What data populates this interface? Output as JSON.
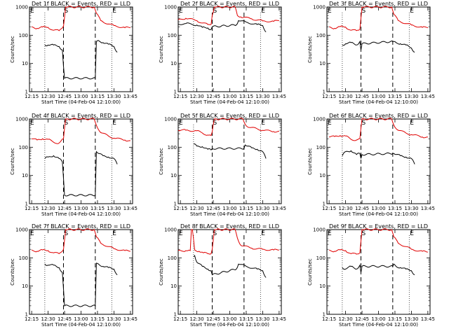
{
  "figure": {
    "background": "#ffffff",
    "events_color": "#000000",
    "lld_color": "#e00000"
  },
  "chart_data": [
    {
      "type": "line",
      "title": "Det 1f BLACK = Events, RED = LLD",
      "xlabel": "Start Time (04-Feb-04 12:10:00)",
      "ylabel": "Counts/sec",
      "y_scale": "log",
      "ylim": [
        1,
        1000
      ],
      "yticks": [
        "1",
        "10",
        "100",
        "1000"
      ],
      "xlim": [
        "12:13",
        "13:47"
      ],
      "xticks": [
        "12:15",
        "12:30",
        "12:45",
        "13:00",
        "13:15",
        "13:30",
        "13:45"
      ],
      "event_marks": [
        "E",
        "S",
        "E"
      ],
      "grid": false,
      "series": [
        {
          "name": "LLD",
          "color": "#e00000",
          "x": [
            "12:15",
            "12:20",
            "12:25",
            "12:30",
            "12:35",
            "12:40",
            "12:44",
            "12:46",
            "12:48",
            "13:12",
            "13:14",
            "13:18",
            "13:25",
            "13:30",
            "13:40",
            "13:45"
          ],
          "y": [
            200,
            175,
            195,
            190,
            150,
            145,
            210,
            1000,
            1000,
            1000,
            600,
            330,
            250,
            220,
            185,
            185
          ]
        },
        {
          "name": "Events",
          "color": "#000000",
          "x": [
            "12:27",
            "12:30",
            "12:35",
            "12:40",
            "12:43",
            "12:44",
            "12:45",
            "13:13",
            "13:14",
            "13:16",
            "13:20",
            "13:25",
            "13:30",
            "13:33"
          ],
          "y": [
            45,
            45,
            45,
            40,
            30,
            8,
            3,
            3,
            60,
            65,
            55,
            48,
            40,
            25
          ]
        }
      ]
    },
    {
      "type": "line",
      "title": "Det 2f BLACK = Events, RED = LLD",
      "xlabel": "Start Time (04-Feb-04 12:10:00)",
      "ylabel": "Counts/sec",
      "y_scale": "log",
      "ylim": [
        1,
        1000
      ],
      "yticks": [
        "1",
        "10",
        "100",
        "1000"
      ],
      "xlim": [
        "12:13",
        "13:47"
      ],
      "xticks": [
        "12:15",
        "12:30",
        "12:45",
        "13:00",
        "13:15",
        "13:30",
        "13:45"
      ],
      "event_marks": [
        "E",
        "S",
        "E"
      ],
      "grid": false,
      "series": [
        {
          "name": "LLD",
          "color": "#e00000",
          "x": [
            "12:13",
            "12:20",
            "12:30",
            "12:35",
            "12:40",
            "12:43",
            "12:44",
            "12:46",
            "12:48",
            "13:05",
            "13:07",
            "13:10",
            "13:20",
            "13:30",
            "13:40",
            "13:45"
          ],
          "y": [
            350,
            400,
            330,
            270,
            240,
            240,
            500,
            1000,
            1000,
            1000,
            500,
            450,
            380,
            320,
            310,
            330
          ]
        },
        {
          "name": "Events",
          "color": "#000000",
          "x": [
            "12:13",
            "12:20",
            "12:30",
            "12:35",
            "12:40",
            "12:43",
            "12:44",
            "13:06",
            "13:08",
            "13:15",
            "13:25",
            "13:30",
            "13:33"
          ],
          "y": [
            250,
            260,
            230,
            190,
            180,
            160,
            200,
            230,
            330,
            290,
            240,
            220,
            130
          ]
        }
      ]
    },
    {
      "type": "line",
      "title": "Det 3f BLACK = Events, RED = LLD",
      "xlabel": "Start Time (04-Feb-04 12:10:00)",
      "ylabel": "Counts/sec",
      "y_scale": "log",
      "ylim": [
        1,
        1000
      ],
      "yticks": [
        "1",
        "10",
        "100",
        "1000"
      ],
      "xlim": [
        "12:13",
        "13:47"
      ],
      "xticks": [
        "12:15",
        "12:30",
        "12:45",
        "13:00",
        "13:15",
        "13:30",
        "13:45"
      ],
      "event_marks": [
        "E",
        "S",
        "E"
      ],
      "grid": false,
      "series": [
        {
          "name": "LLD",
          "color": "#e00000",
          "x": [
            "12:15",
            "12:20",
            "12:25",
            "12:30",
            "12:35",
            "12:40",
            "12:43",
            "12:45",
            "12:47",
            "13:12",
            "13:14",
            "13:18",
            "13:25",
            "13:30",
            "13:40",
            "13:45"
          ],
          "y": [
            200,
            175,
            200,
            195,
            150,
            145,
            160,
            1000,
            1000,
            1000,
            550,
            330,
            260,
            230,
            190,
            185
          ]
        },
        {
          "name": "Events",
          "color": "#000000",
          "x": [
            "12:27",
            "12:30",
            "12:35",
            "12:40",
            "12:43",
            "12:44",
            "12:45",
            "13:13",
            "13:14",
            "13:16",
            "13:20",
            "13:25",
            "13:30",
            "13:33"
          ],
          "y": [
            45,
            50,
            55,
            45,
            60,
            30,
            50,
            60,
            60,
            55,
            50,
            45,
            35,
            25
          ]
        }
      ]
    },
    {
      "type": "line",
      "title": "Det 4f BLACK = Events, RED = LLD",
      "xlabel": "Start Time (04-Feb-04 12:10:00)",
      "ylabel": "Counts/sec",
      "y_scale": "log",
      "ylim": [
        1,
        1000
      ],
      "yticks": [
        "1",
        "10",
        "100",
        "1000"
      ],
      "xlim": [
        "12:13",
        "13:47"
      ],
      "xticks": [
        "12:15",
        "12:30",
        "12:45",
        "13:00",
        "13:15",
        "13:30",
        "13:45"
      ],
      "event_marks": [
        "E",
        "S",
        "E"
      ],
      "grid": false,
      "series": [
        {
          "name": "LLD",
          "color": "#e00000",
          "x": [
            "12:15",
            "12:20",
            "12:25",
            "12:30",
            "12:35",
            "12:40",
            "12:44",
            "12:46",
            "12:48",
            "13:12",
            "13:14",
            "13:18",
            "13:25",
            "13:30",
            "13:40",
            "13:45"
          ],
          "y": [
            200,
            180,
            200,
            190,
            150,
            140,
            200,
            1000,
            1000,
            1000,
            600,
            330,
            250,
            210,
            180,
            170
          ]
        },
        {
          "name": "Events",
          "color": "#000000",
          "x": [
            "12:27",
            "12:30",
            "12:35",
            "12:40",
            "12:43",
            "12:44",
            "12:45",
            "13:13",
            "13:14",
            "13:16",
            "13:20",
            "13:25",
            "13:30",
            "13:33"
          ],
          "y": [
            40,
            45,
            50,
            40,
            30,
            8,
            2,
            2,
            70,
            60,
            50,
            45,
            40,
            25
          ]
        }
      ]
    },
    {
      "type": "line",
      "title": "Det 5f BLACK = Events, RED = LLD",
      "xlabel": "Start Time (04-Feb-04 12:10:00)",
      "ylabel": "Counts/sec",
      "y_scale": "log",
      "ylim": [
        1,
        1000
      ],
      "yticks": [
        "1",
        "10",
        "100",
        "1000"
      ],
      "xlim": [
        "12:13",
        "13:47"
      ],
      "xticks": [
        "12:15",
        "12:30",
        "12:45",
        "13:00",
        "13:15",
        "13:30",
        "13:45"
      ],
      "event_marks": [
        "E",
        "S",
        "E"
      ],
      "grid": false,
      "series": [
        {
          "name": "LLD",
          "color": "#e00000",
          "x": [
            "12:13",
            "12:20",
            "12:30",
            "12:35",
            "12:40",
            "12:43",
            "12:44",
            "12:46",
            "12:48",
            "13:12",
            "13:14",
            "13:18",
            "13:25",
            "13:30",
            "13:40",
            "13:45"
          ],
          "y": [
            400,
            400,
            380,
            320,
            270,
            260,
            350,
            1000,
            1000,
            1000,
            650,
            500,
            450,
            400,
            360,
            370
          ]
        },
        {
          "name": "Events",
          "color": "#000000",
          "x": [
            "12:27",
            "12:30",
            "12:35",
            "12:40",
            "12:43",
            "12:44",
            "13:13",
            "13:14",
            "13:16",
            "13:20",
            "13:25",
            "13:30",
            "13:33"
          ],
          "y": [
            130,
            110,
            105,
            85,
            80,
            90,
            90,
            120,
            110,
            95,
            85,
            70,
            40
          ]
        }
      ]
    },
    {
      "type": "line",
      "title": "Det 6f BLACK = Events, RED = LLD",
      "xlabel": "Start Time (04-Feb-04 12:10:00)",
      "ylabel": "Counts/sec",
      "y_scale": "log",
      "ylim": [
        1,
        1000
      ],
      "yticks": [
        "1",
        "10",
        "100",
        "1000"
      ],
      "xlim": [
        "12:13",
        "13:47"
      ],
      "xticks": [
        "12:15",
        "12:30",
        "12:45",
        "13:00",
        "13:15",
        "13:30",
        "13:45"
      ],
      "event_marks": [
        "E",
        "S",
        "E"
      ],
      "grid": false,
      "series": [
        {
          "name": "LLD",
          "color": "#e00000",
          "x": [
            "12:15",
            "12:20",
            "12:25",
            "12:30",
            "12:35",
            "12:40",
            "12:43",
            "12:45",
            "12:47",
            "13:12",
            "13:14",
            "13:18",
            "13:25",
            "13:30",
            "13:40",
            "13:45"
          ],
          "y": [
            230,
            240,
            260,
            250,
            190,
            180,
            200,
            1000,
            1000,
            1000,
            600,
            400,
            320,
            280,
            230,
            230
          ]
        },
        {
          "name": "Events",
          "color": "#000000",
          "x": [
            "12:27",
            "12:30",
            "12:35",
            "12:40",
            "12:43",
            "12:44",
            "12:45",
            "13:13",
            "13:14",
            "13:16",
            "13:20",
            "13:25",
            "13:30",
            "13:33"
          ],
          "y": [
            50,
            70,
            75,
            55,
            60,
            40,
            55,
            60,
            60,
            55,
            50,
            45,
            40,
            25
          ]
        }
      ]
    },
    {
      "type": "line",
      "title": "Det 7f BLACK = Events, RED = LLD",
      "xlabel": "Start Time (04-Feb-04 12:10:00)",
      "ylabel": "Counts/sec",
      "y_scale": "log",
      "ylim": [
        1,
        1000
      ],
      "yticks": [
        "1",
        "10",
        "100",
        "1000"
      ],
      "xlim": [
        "12:13",
        "13:47"
      ],
      "xticks": [
        "12:15",
        "12:30",
        "12:45",
        "13:00",
        "13:15",
        "13:30",
        "13:45"
      ],
      "event_marks": [
        "E",
        "S",
        "E"
      ],
      "grid": false,
      "series": [
        {
          "name": "LLD",
          "color": "#e00000",
          "x": [
            "12:15",
            "12:20",
            "12:25",
            "12:30",
            "12:35",
            "12:40",
            "12:44",
            "12:46",
            "12:48",
            "13:12",
            "13:14",
            "13:18",
            "13:25",
            "13:30",
            "13:40",
            "13:45"
          ],
          "y": [
            190,
            170,
            190,
            180,
            150,
            140,
            200,
            1000,
            1000,
            1000,
            550,
            330,
            250,
            210,
            180,
            170
          ]
        },
        {
          "name": "Events",
          "color": "#000000",
          "x": [
            "12:27",
            "12:30",
            "12:35",
            "12:40",
            "12:43",
            "12:44",
            "12:45",
            "13:13",
            "13:14",
            "13:16",
            "13:20",
            "13:25",
            "13:30",
            "13:33"
          ],
          "y": [
            60,
            55,
            55,
            45,
            30,
            8,
            2,
            2,
            65,
            60,
            50,
            45,
            40,
            25
          ]
        }
      ]
    },
    {
      "type": "line",
      "title": "Det 8f BLACK = Events, RED = LLD",
      "xlabel": "Start Time (04-Feb-04 12:10:00)",
      "ylabel": "Counts/sec",
      "y_scale": "log",
      "ylim": [
        1,
        1000
      ],
      "yticks": [
        "1",
        "10",
        "100",
        "1000"
      ],
      "xlim": [
        "12:13",
        "13:47"
      ],
      "xticks": [
        "12:15",
        "12:30",
        "12:45",
        "13:00",
        "13:15",
        "13:30",
        "13:45"
      ],
      "event_marks": [
        "E",
        "S",
        "E"
      ],
      "grid": false,
      "series": [
        {
          "name": "LLD",
          "color": "#e00000",
          "x": [
            "12:13",
            "12:20",
            "12:24",
            "12:25",
            "12:26",
            "12:28",
            "12:32",
            "12:36",
            "12:40",
            "12:43",
            "12:44",
            "12:46",
            "12:48",
            "13:05",
            "13:07",
            "13:10",
            "13:20",
            "13:30",
            "13:40",
            "13:45"
          ],
          "y": [
            180,
            180,
            180,
            1000,
            1000,
            190,
            170,
            150,
            140,
            140,
            200,
            1000,
            1000,
            1000,
            500,
            280,
            220,
            200,
            190,
            190
          ]
        },
        {
          "name": "Events",
          "color": "#000000",
          "x": [
            "12:27",
            "12:28",
            "12:30",
            "12:35",
            "12:40",
            "12:43",
            "12:44",
            "13:06",
            "13:08",
            "13:15",
            "13:25",
            "13:30",
            "13:33"
          ],
          "y": [
            110,
            120,
            70,
            50,
            40,
            35,
            25,
            40,
            60,
            50,
            40,
            35,
            20
          ]
        }
      ]
    },
    {
      "type": "line",
      "title": "Det 9f BLACK = Events, RED = LLD",
      "xlabel": "Start Time (04-Feb-04 12:10:00)",
      "ylabel": "Counts/sec",
      "y_scale": "log",
      "ylim": [
        1,
        1000
      ],
      "yticks": [
        "1",
        "10",
        "100",
        "1000"
      ],
      "xlim": [
        "12:13",
        "13:47"
      ],
      "xticks": [
        "12:15",
        "12:30",
        "12:45",
        "13:00",
        "13:15",
        "13:30",
        "13:45"
      ],
      "event_marks": [
        "E",
        "S",
        "E"
      ],
      "grid": false,
      "series": [
        {
          "name": "LLD",
          "color": "#e00000",
          "x": [
            "12:15",
            "12:20",
            "12:25",
            "12:30",
            "12:35",
            "12:40",
            "12:43",
            "12:45",
            "12:47",
            "13:12",
            "13:14",
            "13:18",
            "13:25",
            "13:30",
            "13:40",
            "13:45"
          ],
          "y": [
            190,
            170,
            190,
            180,
            140,
            135,
            150,
            1000,
            1000,
            1000,
            550,
            330,
            250,
            200,
            170,
            160
          ]
        },
        {
          "name": "Events",
          "color": "#000000",
          "x": [
            "12:27",
            "12:30",
            "12:35",
            "12:40",
            "12:43",
            "12:44",
            "12:45",
            "13:13",
            "13:14",
            "13:16",
            "13:20",
            "13:25",
            "13:30",
            "13:33"
          ],
          "y": [
            45,
            40,
            50,
            40,
            55,
            30,
            50,
            50,
            60,
            50,
            45,
            40,
            35,
            25
          ]
        }
      ]
    }
  ]
}
